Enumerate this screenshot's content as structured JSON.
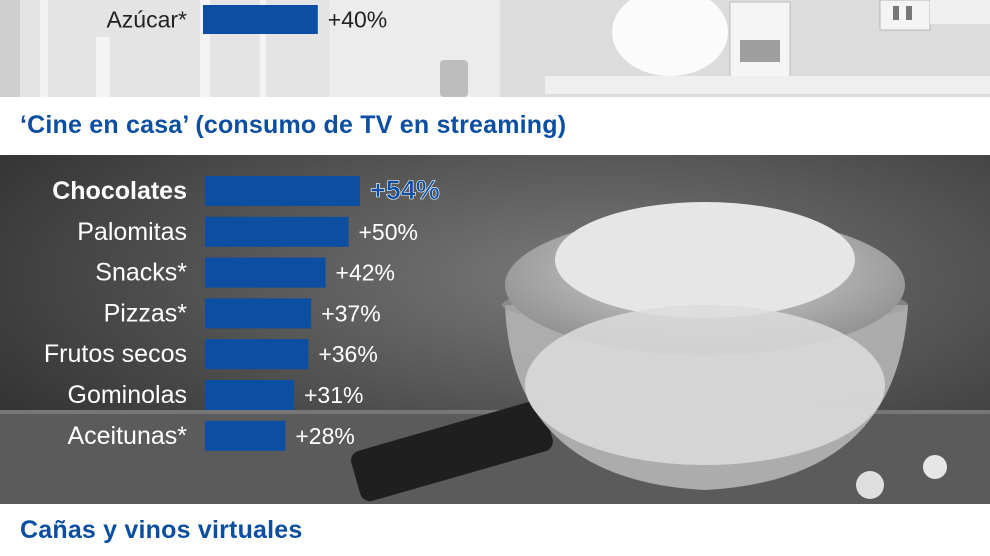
{
  "sections": {
    "top_partial_title": "",
    "cine_title": "‘Cine en casa’ (consumo de TV en streaming)",
    "canas_title": "Cañas y vinos virtuales"
  },
  "colors": {
    "accent": "#0b4ea2",
    "bar": "#0b4ea2",
    "highlight_value": "#0b4ea2"
  },
  "chart_data": [
    {
      "type": "bar",
      "orientation": "horizontal",
      "title": "",
      "categories": [
        "Azúcar*"
      ],
      "values": [
        40
      ],
      "value_labels": [
        "+40%"
      ],
      "xlabel": "",
      "ylabel": ""
    },
    {
      "type": "bar",
      "orientation": "horizontal",
      "title": "‘Cine en casa’ (consumo de TV en streaming)",
      "categories": [
        "Chocolates",
        "Palomitas",
        "Snacks*",
        "Pizzas*",
        "Frutos secos",
        "Gominolas",
        "Aceitunas*"
      ],
      "values": [
        54,
        50,
        42,
        37,
        36,
        31,
        28
      ],
      "value_labels": [
        "+54%",
        "+50%",
        "+42%",
        "+37%",
        "+36%",
        "+31%",
        "+28%"
      ],
      "highlight": "Chocolates",
      "xlabel": "",
      "ylabel": ""
    }
  ]
}
